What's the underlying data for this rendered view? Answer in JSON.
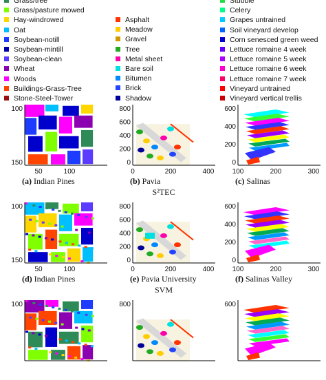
{
  "legend": {
    "col1": [
      {
        "label": "Grass/tree",
        "color": "#2e8b57"
      },
      {
        "label": "Grass/pasture mowed",
        "color": "#7fff00"
      },
      {
        "label": "Hay-windrowed",
        "color": "#ffd700"
      },
      {
        "label": "Oat",
        "color": "#00bfff"
      },
      {
        "label": "Soybean-notill",
        "color": "#1e3cff"
      },
      {
        "label": "Soybean-mintill",
        "color": "#0000aa"
      },
      {
        "label": "Soybean-clean",
        "color": "#5b3cff"
      },
      {
        "label": "Wheat",
        "color": "#8b00b0"
      },
      {
        "label": "Woods",
        "color": "#ff00ff"
      },
      {
        "label": "Buildings-Grass-Tree",
        "color": "#ff4500"
      },
      {
        "label": "Stone-Steel-Tower",
        "color": "#9a1010"
      }
    ],
    "col2": [
      {
        "label": "Asphalt",
        "color": "#ff3300"
      },
      {
        "label": "Meadow",
        "color": "#ffcc00"
      },
      {
        "label": "Gravel",
        "color": "#cc9900"
      },
      {
        "label": "Tree",
        "color": "#22aa22"
      },
      {
        "label": "Metal sheet",
        "color": "#ff00aa"
      },
      {
        "label": "Bare soil",
        "color": "#00e0e0"
      },
      {
        "label": "Bitumen",
        "color": "#0088ff"
      },
      {
        "label": "Brick",
        "color": "#2244ff"
      },
      {
        "label": "Shadow",
        "color": "#000099"
      }
    ],
    "col3": [
      {
        "label": "Stubble",
        "color": "#22dd44"
      },
      {
        "label": "Celery",
        "color": "#00ff88"
      },
      {
        "label": "Grapes untrained",
        "color": "#00ccff"
      },
      {
        "label": "Soil vineyard develop",
        "color": "#0066ff"
      },
      {
        "label": "Corn senesced green weed",
        "color": "#0000cc"
      },
      {
        "label": "Lettuce romaine 4 week",
        "color": "#6600ff"
      },
      {
        "label": "Lettuce romaine 5 week",
        "color": "#aa00ff"
      },
      {
        "label": "Lettuce romaine 6 week",
        "color": "#ff00cc"
      },
      {
        "label": "Lettuce romaine 7 week",
        "color": "#ff0066"
      },
      {
        "label": "Vineyard untrained",
        "color": "#ff0000"
      },
      {
        "label": "Vineyard vertical trellis",
        "color": "#cc0000"
      }
    ]
  },
  "rows": [
    {
      "method": "S²TEC",
      "captions": [
        {
          "letter": "(a)",
          "name": "Indian Pines"
        },
        {
          "letter": "(b)",
          "name": "Pavia"
        },
        {
          "letter": "(c)",
          "name": "Salinas"
        }
      ],
      "panels": [
        {
          "yticks": [
            "100",
            "150"
          ],
          "xticks": [
            "50",
            "100"
          ]
        },
        {
          "yticks": [
            "800",
            "600",
            "400",
            "200",
            "0"
          ],
          "xticks": [
            "0",
            "200",
            "400"
          ]
        },
        {
          "yticks": [
            "600",
            "400",
            "200",
            "0"
          ],
          "xticks": [
            "100",
            "200",
            "300"
          ]
        }
      ]
    },
    {
      "method": "SVM",
      "captions": [
        {
          "letter": "(d)",
          "name": "Indian Pines"
        },
        {
          "letter": "(e)",
          "name": "Pavia University"
        },
        {
          "letter": "(f)",
          "name": "Salinas Valley"
        }
      ],
      "panels": [
        {
          "yticks": [
            "100",
            "150"
          ],
          "xticks": [
            "50",
            "100"
          ]
        },
        {
          "yticks": [
            "800",
            "600",
            "400",
            "200",
            "0"
          ],
          "xticks": [
            "0",
            "200",
            "400"
          ]
        },
        {
          "yticks": [
            "600",
            "400",
            "200",
            "0"
          ],
          "xticks": [
            "100",
            "200",
            "300"
          ]
        }
      ]
    },
    {
      "method": "",
      "captions": [],
      "panels": [
        {
          "yticks": [
            "100"
          ],
          "xticks": []
        },
        {
          "yticks": [
            "800"
          ],
          "xticks": []
        },
        {
          "yticks": [
            "600"
          ],
          "xticks": []
        }
      ]
    }
  ]
}
